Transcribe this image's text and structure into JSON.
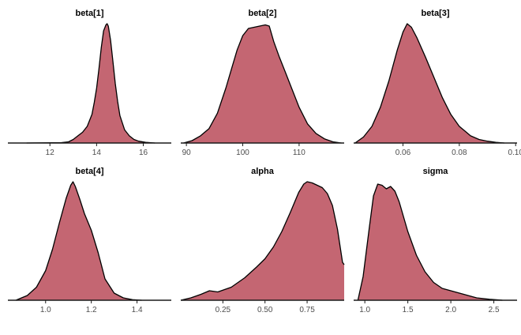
{
  "figure": {
    "fill_color": "#c46672",
    "line_color": "#000000",
    "axis_color": "#1a1a1a"
  },
  "chart_data": [
    {
      "type": "area",
      "title": "beta[1]",
      "xlabel": "",
      "ylabel": "",
      "xlim": [
        10.2,
        17.2
      ],
      "grid": false,
      "x_ticks": [
        12,
        14,
        16
      ],
      "x_tick_labels": [
        "12",
        "14",
        "16"
      ],
      "series": [
        {
          "x": [
            11.0,
            12.5,
            12.8,
            13.0,
            13.2,
            13.4,
            13.6,
            13.8,
            13.9,
            14.0,
            14.1,
            14.2,
            14.3,
            14.4,
            14.45,
            14.5,
            14.6,
            14.7,
            14.8,
            14.9,
            15.0,
            15.2,
            15.4,
            15.6,
            15.8,
            16.1,
            16.5
          ],
          "y": [
            0.0,
            0.003,
            0.01,
            0.03,
            0.06,
            0.09,
            0.14,
            0.24,
            0.34,
            0.46,
            0.62,
            0.8,
            0.94,
            0.99,
            1.0,
            0.98,
            0.86,
            0.68,
            0.5,
            0.35,
            0.23,
            0.11,
            0.06,
            0.03,
            0.015,
            0.005,
            0.0
          ]
        }
      ]
    },
    {
      "type": "area",
      "title": "beta[2]",
      "xlabel": "",
      "ylabel": "",
      "xlim": [
        89.0,
        118.0
      ],
      "grid": false,
      "x_ticks": [
        90,
        100,
        110
      ],
      "x_tick_labels": [
        "90",
        "100",
        "110"
      ],
      "series": [
        {
          "x": [
            89.5,
            91.0,
            92.5,
            94.0,
            95.5,
            97.0,
            98.0,
            99.0,
            100.0,
            101.0,
            102.0,
            103.0,
            104.0,
            104.7,
            105.5,
            106.5,
            107.5,
            108.5,
            110.0,
            111.5,
            113.0,
            114.5,
            116.0,
            117.5
          ],
          "y": [
            0.0,
            0.02,
            0.06,
            0.12,
            0.25,
            0.46,
            0.62,
            0.78,
            0.9,
            0.96,
            0.97,
            0.98,
            0.99,
            0.98,
            0.85,
            0.72,
            0.6,
            0.48,
            0.3,
            0.16,
            0.08,
            0.035,
            0.01,
            0.0
          ]
        }
      ]
    },
    {
      "type": "area",
      "title": "beta[3]",
      "xlabel": "",
      "ylabel": "",
      "xlim": [
        0.0425,
        0.1005
      ],
      "grid": false,
      "x_ticks": [
        0.06,
        0.08,
        0.1
      ],
      "x_tick_labels": [
        "0.06",
        "0.08",
        "0.10"
      ],
      "series": [
        {
          "x": [
            0.043,
            0.046,
            0.049,
            0.052,
            0.055,
            0.058,
            0.06,
            0.0615,
            0.063,
            0.065,
            0.068,
            0.071,
            0.074,
            0.077,
            0.08,
            0.082,
            0.084,
            0.087,
            0.09,
            0.093,
            0.096
          ],
          "y": [
            0.0,
            0.05,
            0.14,
            0.3,
            0.52,
            0.78,
            0.93,
            1.0,
            0.97,
            0.88,
            0.72,
            0.55,
            0.38,
            0.24,
            0.14,
            0.1,
            0.06,
            0.03,
            0.015,
            0.005,
            0.0
          ]
        }
      ]
    },
    {
      "type": "area",
      "title": "beta[4]",
      "xlabel": "",
      "ylabel": "",
      "xlim": [
        0.835,
        1.55
      ],
      "grid": false,
      "x_ticks": [
        1.0,
        1.2,
        1.4
      ],
      "x_tick_labels": [
        "1.0",
        "1.2",
        "1.4"
      ],
      "series": [
        {
          "x": [
            0.87,
            0.92,
            0.96,
            1.0,
            1.03,
            1.06,
            1.09,
            1.11,
            1.12,
            1.13,
            1.15,
            1.17,
            1.2,
            1.23,
            1.26,
            1.3,
            1.34,
            1.38,
            1.42
          ],
          "y": [
            0.0,
            0.04,
            0.11,
            0.25,
            0.43,
            0.65,
            0.86,
            0.97,
            1.0,
            0.96,
            0.85,
            0.73,
            0.59,
            0.4,
            0.18,
            0.06,
            0.02,
            0.005,
            0.0
          ]
        }
      ]
    },
    {
      "type": "area",
      "title": "alpha",
      "xlabel": "",
      "ylabel": "",
      "xlim": [
        0.0,
        0.97
      ],
      "grid": false,
      "x_ticks": [
        0.25,
        0.5,
        0.75
      ],
      "x_tick_labels": [
        "0.25",
        "0.50",
        "0.75"
      ],
      "series": [
        {
          "x": [
            0.0,
            0.06,
            0.12,
            0.17,
            0.22,
            0.3,
            0.38,
            0.45,
            0.5,
            0.55,
            0.6,
            0.65,
            0.7,
            0.73,
            0.75,
            0.78,
            0.81,
            0.84,
            0.87,
            0.9,
            0.93,
            0.96,
            0.97
          ],
          "y": [
            0.0,
            0.02,
            0.05,
            0.08,
            0.07,
            0.11,
            0.19,
            0.28,
            0.35,
            0.45,
            0.58,
            0.74,
            0.91,
            0.98,
            1.0,
            0.99,
            0.97,
            0.95,
            0.9,
            0.8,
            0.6,
            0.32,
            0.3
          ]
        }
      ]
    },
    {
      "type": "area",
      "title": "sigma",
      "xlabel": "",
      "ylabel": "",
      "xlim": [
        0.87,
        2.77
      ],
      "grid": false,
      "x_ticks": [
        1.0,
        1.5,
        2.0,
        2.5
      ],
      "x_tick_labels": [
        "1.0",
        "1.5",
        "2.0",
        "2.5"
      ],
      "series": [
        {
          "x": [
            0.92,
            0.98,
            1.05,
            1.1,
            1.15,
            1.2,
            1.25,
            1.3,
            1.35,
            1.4,
            1.5,
            1.6,
            1.7,
            1.8,
            1.9,
            2.0,
            2.1,
            2.2,
            2.3,
            2.45,
            2.6
          ],
          "y": [
            0.0,
            0.2,
            0.6,
            0.88,
            0.98,
            0.97,
            0.94,
            0.96,
            0.92,
            0.83,
            0.58,
            0.38,
            0.24,
            0.15,
            0.1,
            0.08,
            0.06,
            0.04,
            0.02,
            0.008,
            0.0
          ]
        }
      ]
    }
  ]
}
